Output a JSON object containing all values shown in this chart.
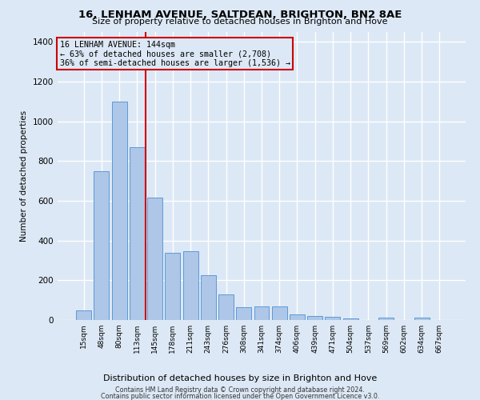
{
  "title1": "16, LENHAM AVENUE, SALTDEAN, BRIGHTON, BN2 8AE",
  "title2": "Size of property relative to detached houses in Brighton and Hove",
  "xlabel": "Distribution of detached houses by size in Brighton and Hove",
  "ylabel": "Number of detached properties",
  "footer1": "Contains HM Land Registry data © Crown copyright and database right 2024.",
  "footer2": "Contains public sector information licensed under the Open Government Licence v3.0.",
  "annotation_title": "16 LENHAM AVENUE: 144sqm",
  "annotation_line1": "← 63% of detached houses are smaller (2,708)",
  "annotation_line2": "36% of semi-detached houses are larger (1,536) →",
  "categories": [
    "15sqm",
    "48sqm",
    "80sqm",
    "113sqm",
    "145sqm",
    "178sqm",
    "211sqm",
    "243sqm",
    "276sqm",
    "308sqm",
    "341sqm",
    "374sqm",
    "406sqm",
    "439sqm",
    "471sqm",
    "504sqm",
    "537sqm",
    "569sqm",
    "602sqm",
    "634sqm",
    "667sqm"
  ],
  "values": [
    50,
    750,
    1100,
    870,
    615,
    340,
    345,
    225,
    130,
    65,
    70,
    70,
    28,
    22,
    15,
    8,
    0,
    12,
    0,
    12,
    0
  ],
  "bar_color": "#aec6e8",
  "bar_edge_color": "#5b9bd5",
  "redline_color": "#cc0000",
  "background_color": "#dce8f5",
  "grid_color": "#ffffff",
  "ylim": [
    0,
    1450
  ],
  "yticks": [
    0,
    200,
    400,
    600,
    800,
    1000,
    1200,
    1400
  ]
}
